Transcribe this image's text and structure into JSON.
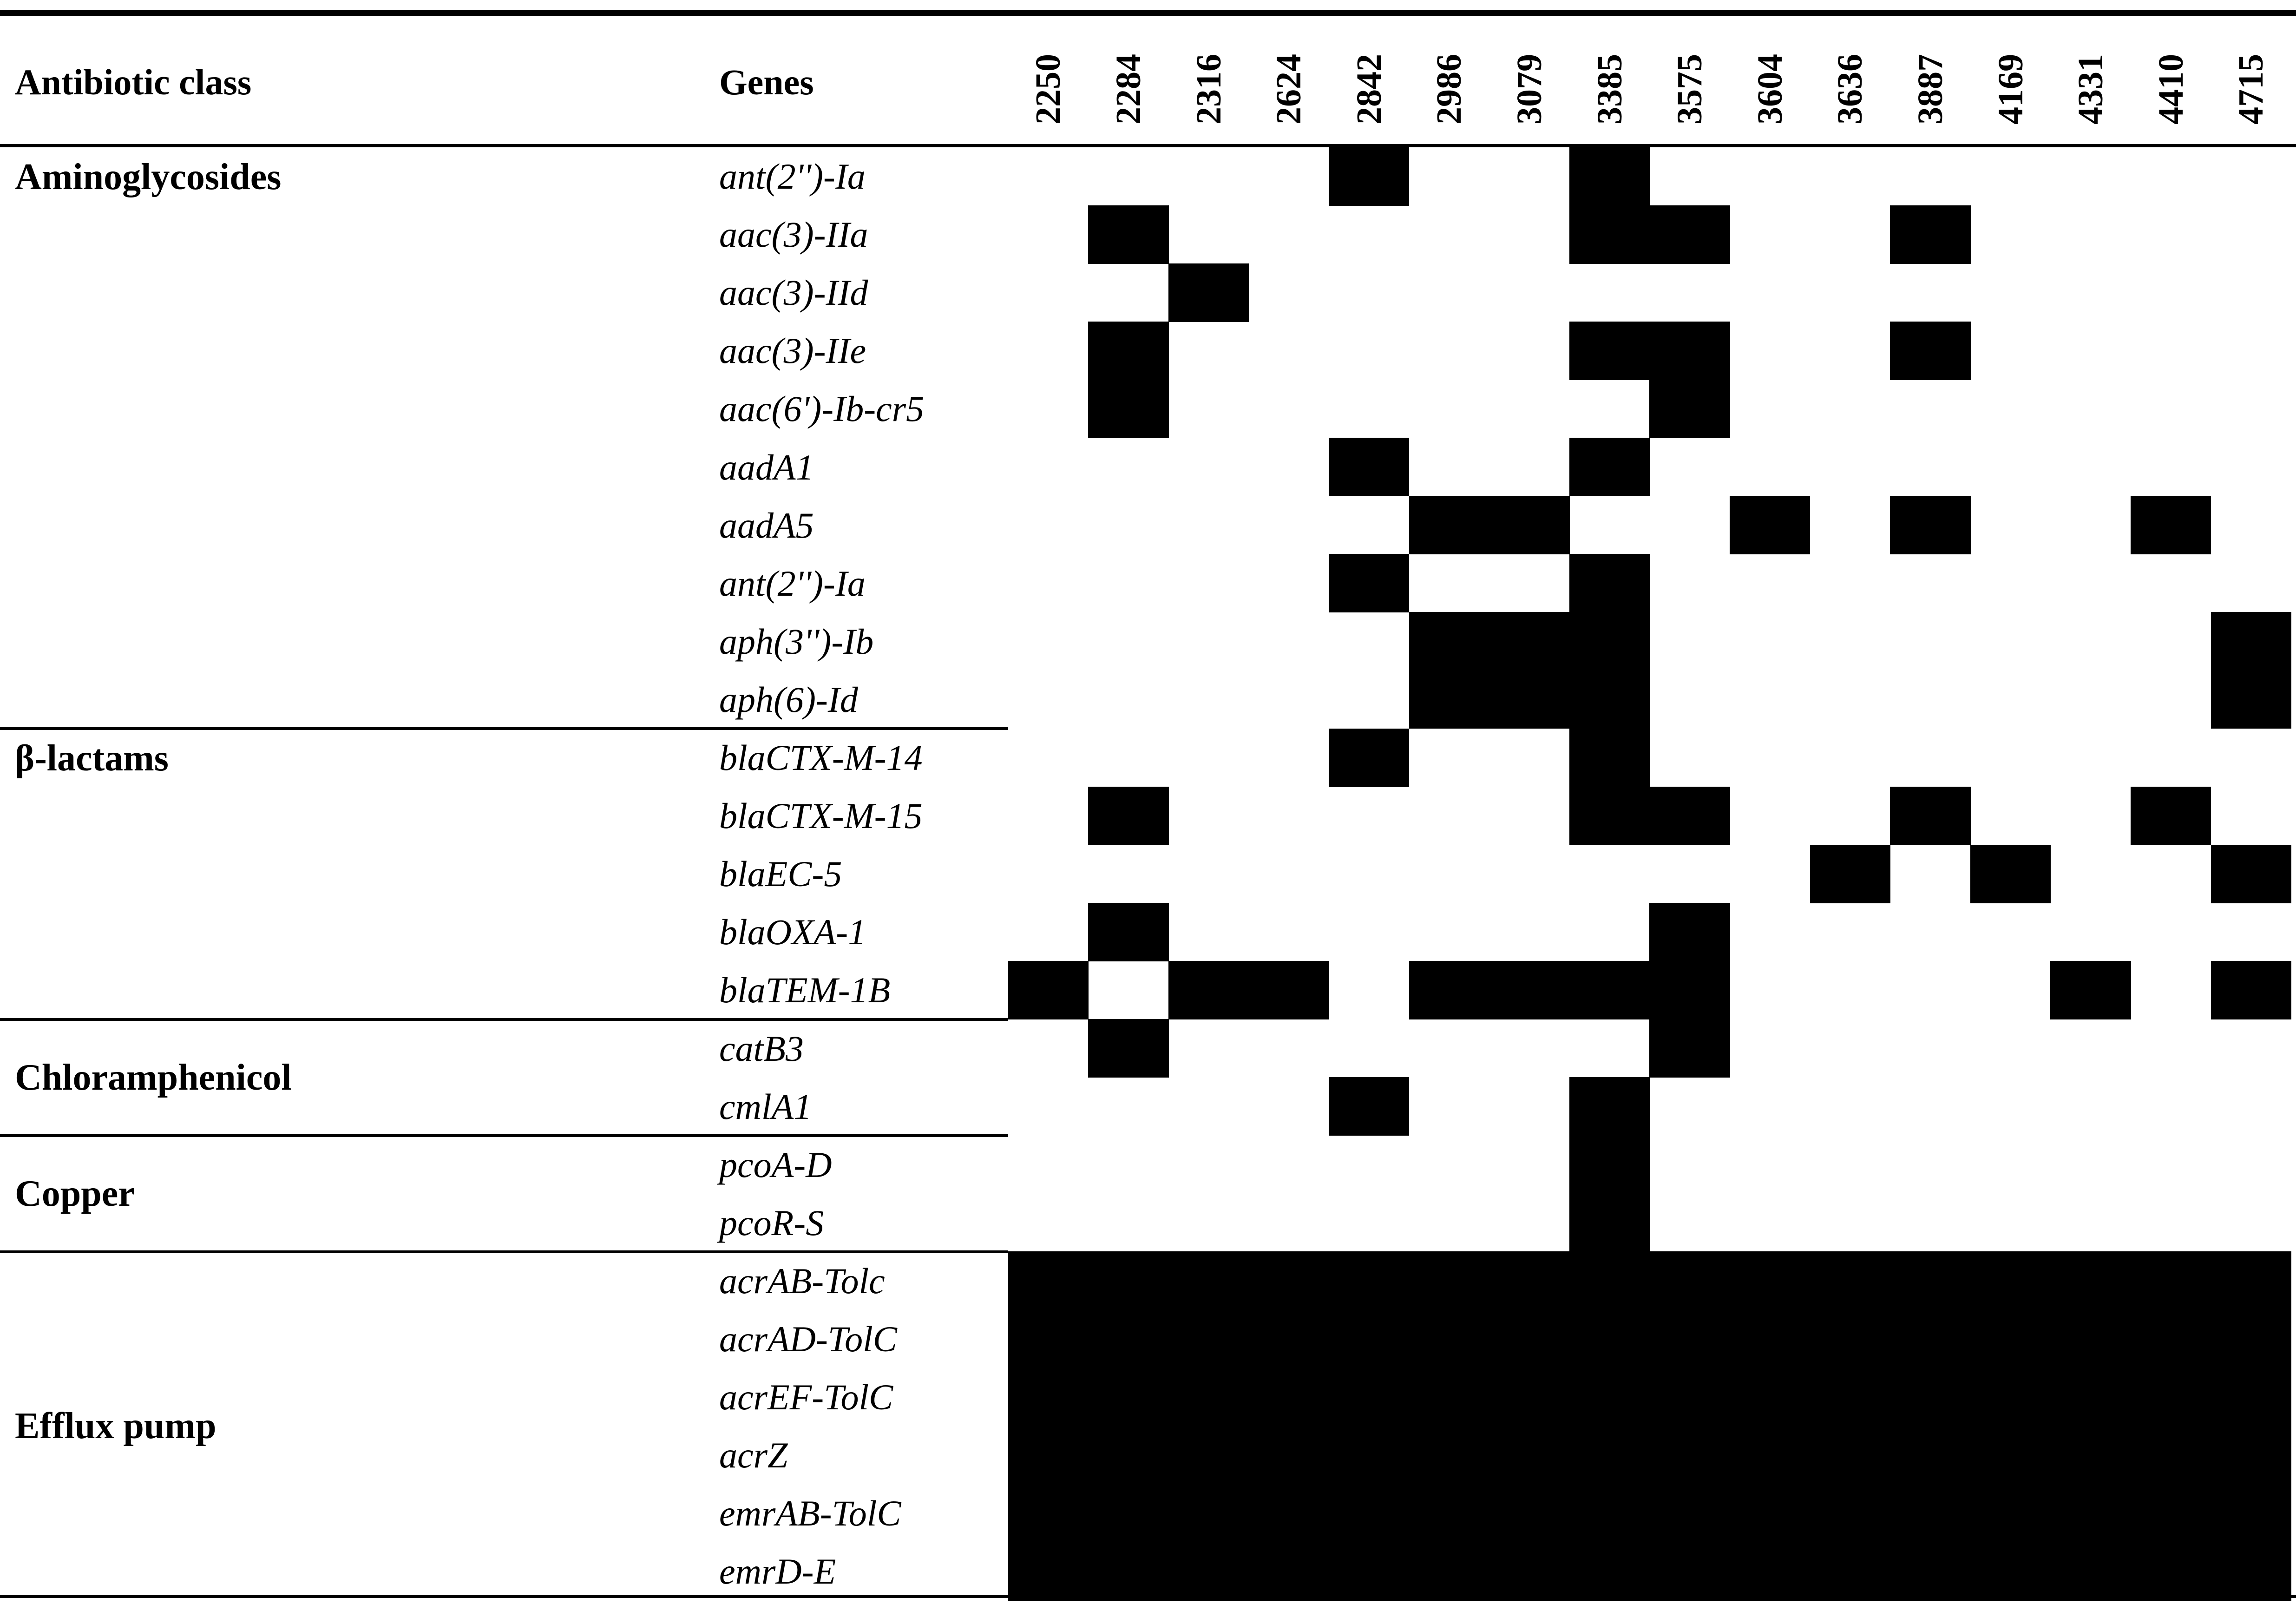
{
  "header": {
    "class_label": "Antibiotic class",
    "genes_label": "Genes"
  },
  "columns": [
    "2250",
    "2284",
    "2316",
    "2624",
    "2842",
    "2986",
    "3079",
    "3385",
    "3575",
    "3604",
    "3636",
    "3887",
    "4169",
    "4331",
    "4410",
    "4715"
  ],
  "groups": [
    {
      "name": "Aminoglycosides",
      "start": 0,
      "end": 9
    },
    {
      "name": "β-lactams",
      "start": 10,
      "end": 14
    },
    {
      "name": "Chloramphenicol",
      "start": 15,
      "end": 16
    },
    {
      "name": "Copper",
      "start": 17,
      "end": 18
    },
    {
      "name": "Efflux pump",
      "start": 19,
      "end": 24
    }
  ],
  "genes": [
    {
      "name": "ant(2'')-Ia",
      "present": [
        "2842",
        "3385"
      ]
    },
    {
      "name": "aac(3)-IIa",
      "present": [
        "2284",
        "3385",
        "3575",
        "3887"
      ]
    },
    {
      "name": "aac(3)-IId",
      "present": [
        "2316"
      ]
    },
    {
      "name": "aac(3)-IIe",
      "present": [
        "2284",
        "3385",
        "3575",
        "3887"
      ]
    },
    {
      "name": "aac(6')-Ib-cr5",
      "present": [
        "2284",
        "3575"
      ]
    },
    {
      "name": "aadA1",
      "present": [
        "2842",
        "3385"
      ]
    },
    {
      "name": "aadA5",
      "present": [
        "2986",
        "3079",
        "3604",
        "3887",
        "4410"
      ]
    },
    {
      "name": "ant(2'')-Ia",
      "present": [
        "2842",
        "3385"
      ]
    },
    {
      "name": "aph(3'')-Ib",
      "present": [
        "2986",
        "3079",
        "3385",
        "4715"
      ]
    },
    {
      "name": "aph(6)-Id",
      "present": [
        "2986",
        "3079",
        "3385",
        "4715"
      ]
    },
    {
      "name": "blaCTX-M-14",
      "present": [
        "2842",
        "3385"
      ]
    },
    {
      "name": "blaCTX-M-15",
      "present": [
        "2284",
        "3385",
        "3575",
        "3887",
        "4410"
      ]
    },
    {
      "name": "blaEC-5",
      "present": [
        "3636",
        "4169",
        "4715"
      ]
    },
    {
      "name": "blaOXA-1",
      "present": [
        "2284",
        "3575"
      ]
    },
    {
      "name": "blaTEM-1B",
      "present": [
        "2250",
        "2316",
        "2624",
        "2986",
        "3079",
        "3385",
        "3575",
        "4331",
        "4715"
      ]
    },
    {
      "name": "catB3",
      "present": [
        "2284",
        "3575"
      ]
    },
    {
      "name": "cmlA1",
      "present": [
        "2842",
        "3385"
      ]
    },
    {
      "name": "pcoA-D",
      "present": [
        "3385"
      ]
    },
    {
      "name": "pcoR-S",
      "present": [
        "3385"
      ]
    },
    {
      "name": "acrAB-Tolc",
      "present": [
        "2250",
        "2284",
        "2316",
        "2624",
        "2842",
        "2986",
        "3079",
        "3385",
        "3575",
        "3604",
        "3636",
        "3887",
        "4169",
        "4331",
        "4410",
        "4715"
      ]
    },
    {
      "name": "acrAD-TolC",
      "present": [
        "2250",
        "2284",
        "2316",
        "2624",
        "2842",
        "2986",
        "3079",
        "3385",
        "3575",
        "3604",
        "3636",
        "3887",
        "4169",
        "4331",
        "4410",
        "4715"
      ]
    },
    {
      "name": "acrEF-TolC",
      "present": [
        "2250",
        "2284",
        "2316",
        "2624",
        "2842",
        "2986",
        "3079",
        "3385",
        "3575",
        "3604",
        "3636",
        "3887",
        "4169",
        "4331",
        "4410",
        "4715"
      ]
    },
    {
      "name": "acrZ",
      "present": [
        "2250",
        "2284",
        "2316",
        "2624",
        "2842",
        "2986",
        "3079",
        "3385",
        "3575",
        "3604",
        "3636",
        "3887",
        "4169",
        "4331",
        "4410",
        "4715"
      ]
    },
    {
      "name": "emrAB-TolC",
      "present": [
        "2250",
        "2284",
        "2316",
        "2624",
        "2842",
        "2986",
        "3079",
        "3385",
        "3575",
        "3604",
        "3636",
        "3887",
        "4169",
        "4331",
        "4410",
        "4715"
      ]
    },
    {
      "name": "emrD-E",
      "present": [
        "2250",
        "2284",
        "2316",
        "2624",
        "2842",
        "2986",
        "3079",
        "3385",
        "3575",
        "3604",
        "3636",
        "3887",
        "4169",
        "4331",
        "4410",
        "4715"
      ]
    }
  ]
}
